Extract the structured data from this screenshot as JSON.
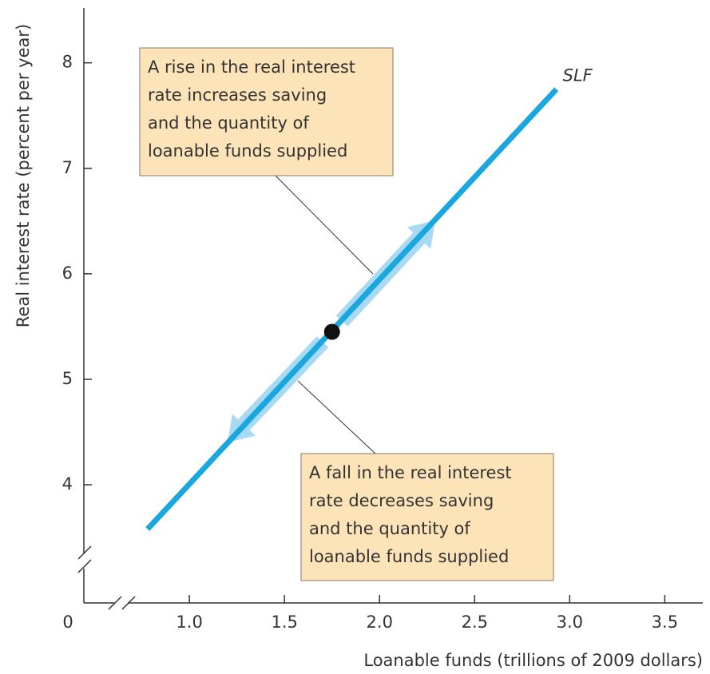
{
  "chart_data": {
    "type": "line",
    "x_axis_label": "Loanable funds (trillions of 2009 dollars)",
    "y_axis_label": "Real interest rate (percent per year)",
    "origin_label": "0",
    "x": [
      0.78,
      2.93
    ],
    "series": [
      {
        "name": "SLF",
        "color": "#1aa7e0",
        "values": [
          3.58,
          7.75
        ]
      }
    ],
    "point": {
      "x": 1.75,
      "y": 5.45,
      "color": "#111111"
    },
    "xlim": [
      0.445,
      3.7
    ],
    "ylim": [
      2.88,
      8.52
    ],
    "xticks": [
      {
        "value": 1,
        "label": "1.0"
      },
      1.5,
      {
        "value": 2,
        "label": "2.0"
      },
      2.5,
      {
        "value": 3,
        "label": "3.0"
      },
      3.5
    ],
    "yticks": [
      4,
      5,
      6,
      7,
      8
    ],
    "annotations": [
      {
        "lines": [
          "A rise in the real interest",
          "rate increases saving",
          "and the quantity of",
          "loanable funds supplied"
        ]
      },
      {
        "lines": [
          "A fall in the real interest",
          "rate decreases saving",
          "and the quantity of",
          "loanable funds supplied"
        ]
      }
    ]
  }
}
